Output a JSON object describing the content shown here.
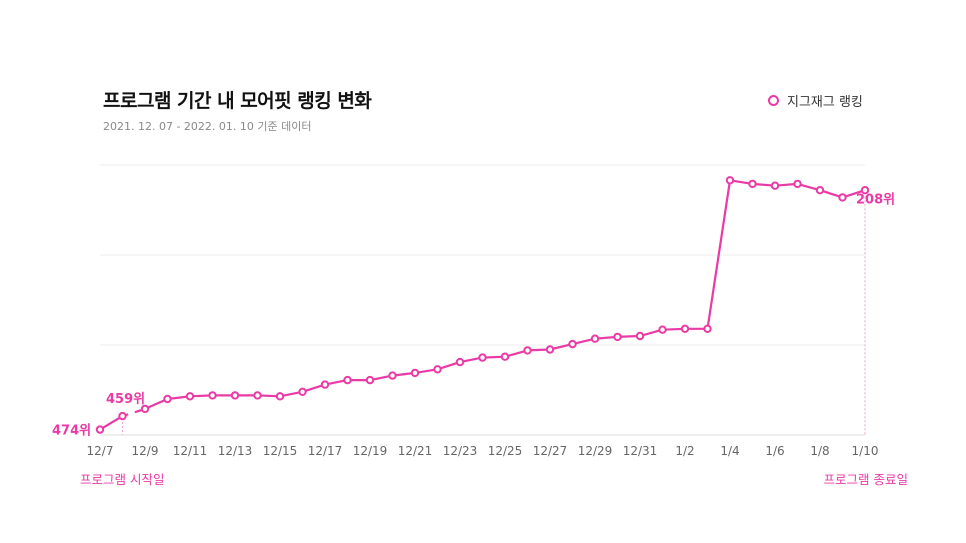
{
  "chart_data": {
    "type": "line",
    "title": "프로그램 기간 내 모어핏 랭킹 변화",
    "subtitle": "2021. 12. 07 - 2022. 01. 10 기준 데이터",
    "legend_position": "top-right",
    "grid": true,
    "y_reversed": true,
    "x_tick_labels": [
      "12/7",
      "12/9",
      "12/11",
      "12/13",
      "12/15",
      "12/17",
      "12/19",
      "12/21",
      "12/23",
      "12/25",
      "12/27",
      "12/29",
      "12/31",
      "1/2",
      "1/4",
      "1/6",
      "1/8",
      "1/10"
    ],
    "series": [
      {
        "name": "지그재그 랭킹",
        "color": "#ea3aa6",
        "x": [
          "12/7",
          "12/8",
          "12/9",
          "12/10",
          "12/11",
          "12/12",
          "12/13",
          "12/14",
          "12/15",
          "12/16",
          "12/17",
          "12/18",
          "12/19",
          "12/20",
          "12/21",
          "12/22",
          "12/23",
          "12/24",
          "12/25",
          "12/26",
          "12/27",
          "12/28",
          "12/29",
          "12/30",
          "12/31",
          "1/1",
          "1/2",
          "1/3",
          "1/4",
          "1/5",
          "1/6",
          "1/7",
          "1/8",
          "1/9",
          "1/10"
        ],
        "values": [
          474,
          459,
          451,
          440,
          437,
          436,
          436,
          436,
          437,
          432,
          424,
          419,
          419,
          414,
          411,
          407,
          399,
          394,
          393,
          386,
          385,
          379,
          373,
          371,
          370,
          363,
          362,
          362,
          197,
          201,
          203,
          201,
          208,
          216,
          208
        ]
      }
    ],
    "point_labels": [
      {
        "text": "474위"
      },
      {
        "text": "459위"
      },
      {
        "text": "208위"
      }
    ],
    "annotations": [
      {
        "text": "프로그램 시작일"
      },
      {
        "text": "프로그램 종료일"
      }
    ]
  }
}
